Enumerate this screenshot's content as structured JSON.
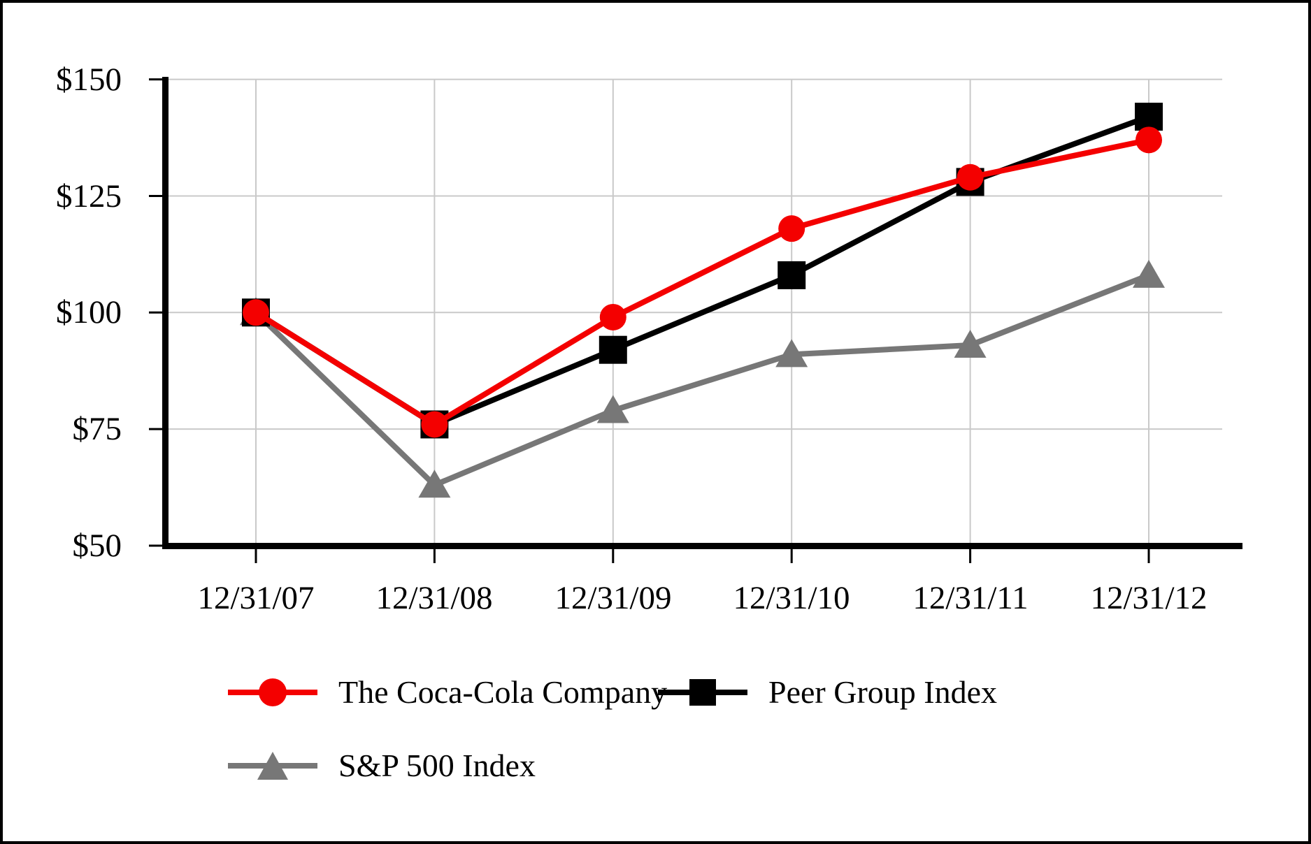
{
  "colors": {
    "background": "#ffffff",
    "frame_border": "#000000",
    "axis": "#000000",
    "grid": "#c9c9c9",
    "coca_cola_red": "#f40000",
    "peer_group_black": "#000000",
    "sp500_gray": "#777777"
  },
  "chart_data": {
    "type": "line",
    "title": "",
    "x_labels": [
      "12/31/07",
      "12/31/08",
      "12/31/09",
      "12/31/10",
      "12/31/11",
      "12/31/12"
    ],
    "y_axis": {
      "prefix": "$",
      "ticks": [
        150,
        125,
        100,
        75,
        50
      ],
      "tick_labels": [
        "$150",
        "$125",
        "$100",
        "$75",
        "$50"
      ],
      "range": [
        50,
        150
      ]
    },
    "grid": true,
    "legend_position": "bottom-left",
    "series": [
      {
        "name": "The Coca-Cola Company",
        "marker": "circle",
        "color": "#f40000",
        "values": [
          100,
          76,
          99,
          118,
          129,
          137
        ]
      },
      {
        "name": "Peer Group Index",
        "marker": "square",
        "color": "#000000",
        "values": [
          100,
          76,
          92,
          108,
          128,
          142
        ]
      },
      {
        "name": "S&P 500 Index",
        "marker": "triangle",
        "color": "#777777",
        "values": [
          100,
          63,
          79,
          91,
          93,
          108
        ]
      }
    ]
  }
}
